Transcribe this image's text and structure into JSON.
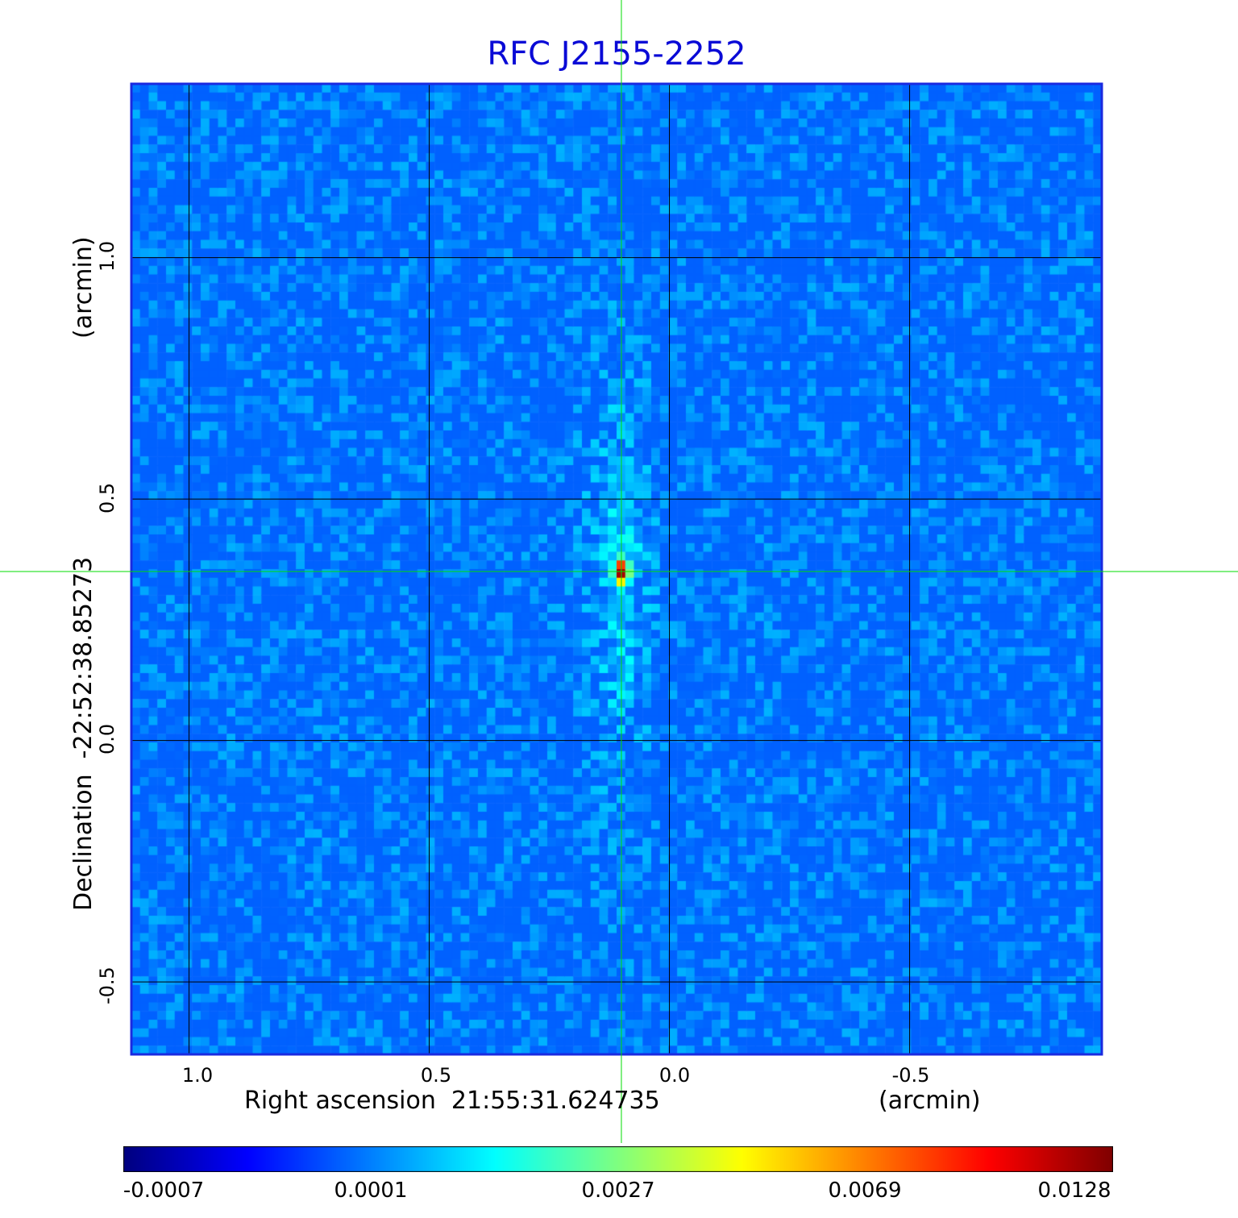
{
  "chart_data": {
    "type": "heatmap",
    "title": "RFC J2155-2252",
    "xlabel": "Right ascension  21:55:31.624735",
    "xunit": "(arcmin)",
    "ylabel": "Declination  -22:52:38.85273",
    "yunit": "(arcmin)",
    "x_ticks": [
      "1.0",
      "0.5",
      "0.0",
      "-0.5"
    ],
    "x_tick_values": [
      1.0,
      0.5,
      0.0,
      -0.5
    ],
    "y_ticks": [
      "1.0",
      "0.5",
      "0.0",
      "-0.5"
    ],
    "y_tick_values": [
      1.0,
      0.5,
      0.0,
      -0.5
    ],
    "xlim": [
      1.12,
      -0.9
    ],
    "ylim": [
      -0.65,
      1.36
    ],
    "grid": true,
    "colormap": "jet",
    "colorbar_ticks": [
      "-0.0007",
      "0.0001",
      "0.0027",
      "0.0069",
      "0.0128"
    ],
    "colorbar_range": [
      -0.0007,
      0.0128
    ],
    "peak": {
      "x": 0.1,
      "y": 0.35,
      "value": 0.0128
    },
    "crosshair": {
      "x": 0.1,
      "y": 0.35
    },
    "crosshair_color": "#00dd00"
  }
}
